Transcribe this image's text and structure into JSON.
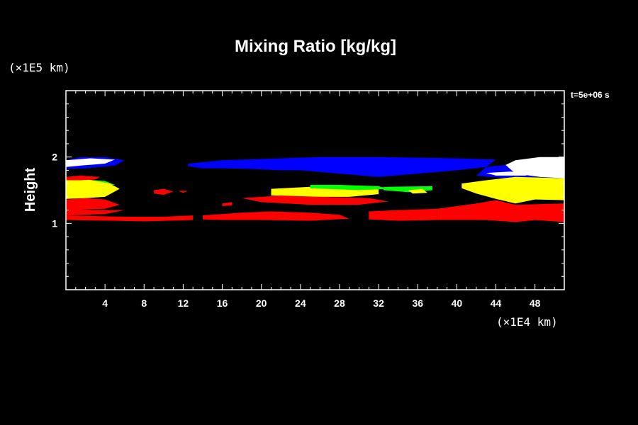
{
  "chart_data": {
    "type": "heatmap",
    "title": "Mixing Ratio [kg/kg]",
    "xlabel": "",
    "ylabel": "Height",
    "x_unit_label": "(×1E4 km)",
    "y_unit_label": "(×1E5 km)",
    "time_label": "t=5e+06 s",
    "xlim": [
      0,
      51
    ],
    "ylim": [
      0,
      3
    ],
    "x_ticks": [
      4,
      8,
      12,
      16,
      20,
      24,
      28,
      32,
      36,
      40,
      44,
      48
    ],
    "x_tick_labels": [
      "4",
      "8",
      "12",
      "16",
      "20",
      "24",
      "28",
      "32",
      "36",
      "40",
      "44",
      "48"
    ],
    "y_ticks": [
      1,
      2
    ],
    "y_tick_labels": [
      "1",
      "2"
    ],
    "x_minor_step": 1,
    "y_minor_step": 0.2,
    "background_color": "#000000",
    "frame_color": "#ffffff",
    "levels": [
      {
        "name": "red",
        "color": "#ff0000"
      },
      {
        "name": "yellow",
        "color": "#ffff00"
      },
      {
        "name": "green",
        "color": "#00ff00"
      },
      {
        "name": "blue",
        "color": "#0000ff"
      },
      {
        "name": "white",
        "color": "#ffffff"
      }
    ],
    "regions": [
      {
        "level": "blue",
        "points": [
          [
            0,
            1.95
          ],
          [
            1.5,
            2.0
          ],
          [
            4,
            2.0
          ],
          [
            6,
            1.95
          ],
          [
            5,
            1.87
          ],
          [
            2,
            1.83
          ],
          [
            0,
            1.82
          ]
        ]
      },
      {
        "level": "white",
        "points": [
          [
            0,
            1.95
          ],
          [
            2.5,
            1.98
          ],
          [
            5,
            1.96
          ],
          [
            4,
            1.9
          ],
          [
            1.5,
            1.87
          ],
          [
            0,
            1.85
          ]
        ]
      },
      {
        "level": "blue",
        "points": [
          [
            12.5,
            1.9
          ],
          [
            16,
            1.95
          ],
          [
            22,
            1.98
          ],
          [
            26,
            2.0
          ],
          [
            32,
            2.0
          ],
          [
            40,
            1.98
          ],
          [
            44,
            1.96
          ],
          [
            43,
            1.85
          ],
          [
            40,
            1.8
          ],
          [
            36,
            1.75
          ],
          [
            32,
            1.7
          ],
          [
            28,
            1.75
          ],
          [
            24,
            1.8
          ],
          [
            22,
            1.8
          ],
          [
            19,
            1.82
          ],
          [
            16,
            1.83
          ],
          [
            14,
            1.83
          ],
          [
            12.5,
            1.86
          ]
        ]
      },
      {
        "level": "blue",
        "points": [
          [
            43,
            1.85
          ],
          [
            45,
            1.88
          ],
          [
            47,
            1.85
          ],
          [
            51,
            1.82
          ],
          [
            51,
            1.68
          ],
          [
            48,
            1.66
          ],
          [
            45,
            1.68
          ],
          [
            42,
            1.72
          ]
        ]
      },
      {
        "level": "white",
        "points": [
          [
            46,
            1.95
          ],
          [
            48.5,
            2.0
          ],
          [
            51,
            2.0
          ],
          [
            51,
            1.68
          ],
          [
            48.5,
            1.7
          ],
          [
            46,
            1.75
          ],
          [
            45,
            1.88
          ]
        ]
      },
      {
        "level": "white",
        "points": [
          [
            43,
            1.76
          ],
          [
            45.5,
            1.78
          ],
          [
            48,
            1.75
          ],
          [
            47,
            1.72
          ],
          [
            44,
            1.72
          ]
        ]
      },
      {
        "level": "green",
        "points": [
          [
            2,
            1.66
          ],
          [
            4,
            1.64
          ],
          [
            5,
            1.58
          ],
          [
            3,
            1.58
          ]
        ]
      },
      {
        "level": "yellow",
        "points": [
          [
            0,
            1.65
          ],
          [
            1.5,
            1.68
          ],
          [
            3,
            1.64
          ],
          [
            4.5,
            1.6
          ],
          [
            5.5,
            1.52
          ],
          [
            4,
            1.4
          ],
          [
            2,
            1.38
          ],
          [
            0,
            1.37
          ]
        ]
      },
      {
        "level": "red",
        "points": [
          [
            0,
            1.7
          ],
          [
            1.5,
            1.72
          ],
          [
            3.5,
            1.7
          ],
          [
            3,
            1.66
          ],
          [
            1.5,
            1.65
          ],
          [
            0,
            1.65
          ]
        ]
      },
      {
        "level": "yellow",
        "points": [
          [
            21,
            1.52
          ],
          [
            25,
            1.55
          ],
          [
            29,
            1.55
          ],
          [
            32,
            1.54
          ],
          [
            32,
            1.44
          ],
          [
            29,
            1.4
          ],
          [
            25,
            1.4
          ],
          [
            21,
            1.42
          ]
        ]
      },
      {
        "level": "green",
        "points": [
          [
            25,
            1.58
          ],
          [
            28,
            1.58
          ],
          [
            32,
            1.56
          ],
          [
            33,
            1.52
          ],
          [
            30,
            1.5
          ],
          [
            25,
            1.53
          ]
        ]
      },
      {
        "level": "green",
        "points": [
          [
            32.5,
            1.55
          ],
          [
            37.5,
            1.56
          ],
          [
            37.5,
            1.5
          ],
          [
            35,
            1.47
          ],
          [
            32.5,
            1.5
          ]
        ]
      },
      {
        "level": "yellow",
        "points": [
          [
            35,
            1.5
          ],
          [
            36.5,
            1.52
          ],
          [
            37,
            1.46
          ],
          [
            35.5,
            1.45
          ]
        ]
      },
      {
        "level": "yellow",
        "points": [
          [
            40.5,
            1.6
          ],
          [
            43,
            1.65
          ],
          [
            46,
            1.7
          ],
          [
            51,
            1.68
          ],
          [
            51,
            1.35
          ],
          [
            48,
            1.36
          ],
          [
            46,
            1.3
          ],
          [
            44,
            1.37
          ],
          [
            42,
            1.45
          ],
          [
            40.5,
            1.53
          ]
        ]
      },
      {
        "level": "red",
        "points": [
          [
            0,
            1.36
          ],
          [
            2,
            1.38
          ],
          [
            4,
            1.36
          ],
          [
            5.5,
            1.28
          ],
          [
            4,
            1.22
          ],
          [
            0,
            1.2
          ]
        ]
      },
      {
        "level": "red",
        "points": [
          [
            0,
            1.22
          ],
          [
            3,
            1.2
          ],
          [
            6,
            1.2
          ],
          [
            4,
            1.14
          ],
          [
            0,
            1.12
          ]
        ]
      },
      {
        "level": "red",
        "points": [
          [
            0,
            1.12
          ],
          [
            6,
            1.1
          ],
          [
            10,
            1.1
          ],
          [
            13,
            1.12
          ],
          [
            13,
            1.05
          ],
          [
            8,
            1.03
          ],
          [
            5,
            1.04
          ],
          [
            0,
            1.05
          ]
        ]
      },
      {
        "level": "red",
        "points": [
          [
            9,
            1.5
          ],
          [
            10,
            1.52
          ],
          [
            11,
            1.48
          ],
          [
            10,
            1.43
          ],
          [
            9,
            1.45
          ]
        ]
      },
      {
        "level": "red",
        "points": [
          [
            11.5,
            1.49
          ],
          [
            12.5,
            1.49
          ],
          [
            12,
            1.46
          ]
        ]
      },
      {
        "level": "red",
        "points": [
          [
            16,
            1.3
          ],
          [
            17,
            1.32
          ],
          [
            17,
            1.27
          ],
          [
            16,
            1.26
          ]
        ]
      },
      {
        "level": "red",
        "points": [
          [
            18,
            1.38
          ],
          [
            22,
            1.42
          ],
          [
            26,
            1.4
          ],
          [
            31,
            1.38
          ],
          [
            33,
            1.33
          ],
          [
            30,
            1.28
          ],
          [
            25,
            1.28
          ],
          [
            20,
            1.32
          ]
        ]
      },
      {
        "level": "red",
        "points": [
          [
            14,
            1.12
          ],
          [
            18,
            1.16
          ],
          [
            21,
            1.18
          ],
          [
            25,
            1.16
          ],
          [
            28,
            1.13
          ],
          [
            29,
            1.07
          ],
          [
            25,
            1.04
          ],
          [
            20,
            1.05
          ],
          [
            16,
            1.05
          ],
          [
            14,
            1.06
          ]
        ]
      },
      {
        "level": "red",
        "points": [
          [
            31,
            1.18
          ],
          [
            34,
            1.2
          ],
          [
            38,
            1.22
          ],
          [
            38,
            1.05
          ],
          [
            34,
            1.04
          ],
          [
            31,
            1.06
          ]
        ]
      },
      {
        "level": "red",
        "points": [
          [
            38,
            1.22
          ],
          [
            42,
            1.3
          ],
          [
            44,
            1.35
          ],
          [
            46,
            1.28
          ],
          [
            51,
            1.3
          ],
          [
            51,
            1.02
          ],
          [
            48,
            1.05
          ],
          [
            46,
            1.02
          ],
          [
            43,
            1.05
          ],
          [
            38,
            1.05
          ]
        ]
      }
    ]
  }
}
